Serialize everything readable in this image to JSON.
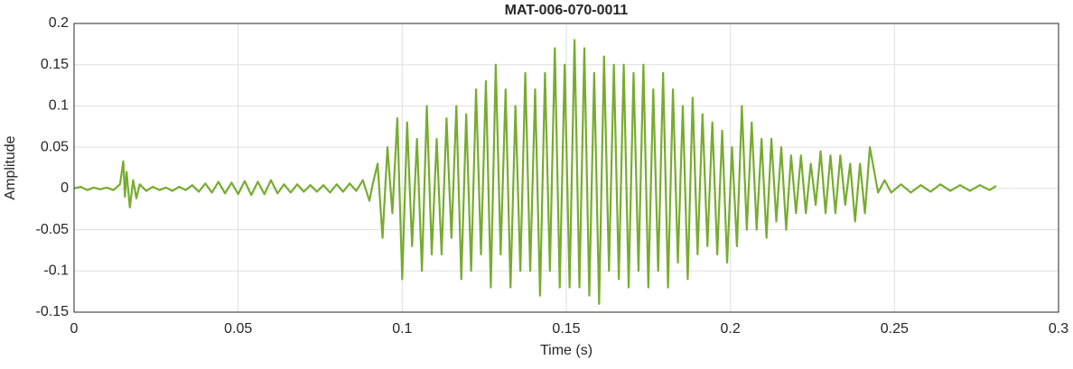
{
  "chart_data": {
    "type": "line",
    "title": "MAT-006-070-0011",
    "xlabel": "Time (s)",
    "ylabel": "Amplitude",
    "color": "#77ac30",
    "grid": true,
    "xlim": [
      0,
      0.3
    ],
    "xticks": [
      0,
      0.05,
      0.1,
      0.15,
      0.2,
      0.25,
      0.3
    ],
    "ylim": [
      -0.15,
      0.2
    ],
    "yticks": [
      -0.15,
      -0.1,
      -0.05,
      0,
      0.05,
      0.1,
      0.15,
      0.2
    ],
    "x": [
      0,
      0.002,
      0.004,
      0.006,
      0.008,
      0.01,
      0.012,
      0.014,
      0.015,
      0.0155,
      0.016,
      0.017,
      0.018,
      0.019,
      0.02,
      0.022,
      0.024,
      0.026,
      0.028,
      0.03,
      0.032,
      0.034,
      0.036,
      0.038,
      0.04,
      0.042,
      0.044,
      0.046,
      0.048,
      0.05,
      0.052,
      0.054,
      0.056,
      0.058,
      0.06,
      0.062,
      0.064,
      0.066,
      0.068,
      0.07,
      0.072,
      0.074,
      0.076,
      0.078,
      0.08,
      0.082,
      0.084,
      0.086,
      0.088,
      0.09,
      0.091,
      0.0925,
      0.094,
      0.0955,
      0.097,
      0.0985,
      0.1,
      0.1015,
      0.103,
      0.1045,
      0.106,
      0.1075,
      0.109,
      0.1105,
      0.112,
      0.1135,
      0.115,
      0.1165,
      0.118,
      0.1195,
      0.121,
      0.1225,
      0.124,
      0.1255,
      0.127,
      0.1285,
      0.13,
      0.1315,
      0.133,
      0.1345,
      0.136,
      0.1375,
      0.139,
      0.1405,
      0.142,
      0.1435,
      0.145,
      0.1465,
      0.148,
      0.1495,
      0.151,
      0.1525,
      0.154,
      0.1555,
      0.157,
      0.1585,
      0.16,
      0.1615,
      0.163,
      0.1645,
      0.166,
      0.1675,
      0.169,
      0.1705,
      0.172,
      0.1735,
      0.175,
      0.1765,
      0.178,
      0.1795,
      0.181,
      0.1825,
      0.184,
      0.1855,
      0.187,
      0.1885,
      0.19,
      0.1915,
      0.193,
      0.1945,
      0.196,
      0.1975,
      0.199,
      0.2005,
      0.202,
      0.2035,
      0.205,
      0.2065,
      0.208,
      0.2095,
      0.211,
      0.2125,
      0.214,
      0.2155,
      0.217,
      0.2185,
      0.22,
      0.2215,
      0.223,
      0.2245,
      0.226,
      0.2275,
      0.229,
      0.2305,
      0.232,
      0.2335,
      0.235,
      0.2365,
      0.238,
      0.2395,
      0.241,
      0.2425,
      0.245,
      0.247,
      0.249,
      0.252,
      0.255,
      0.258,
      0.261,
      0.264,
      0.267,
      0.27,
      0.273,
      0.276,
      0.279,
      0.281
    ],
    "values": [
      0,
      0.002,
      -0.002,
      0.001,
      -0.001,
      0.001,
      -0.002,
      0.005,
      0.033,
      -0.01,
      0.02,
      -0.023,
      0.01,
      -0.012,
      0.005,
      -0.003,
      0.002,
      -0.002,
      0.001,
      -0.003,
      0.002,
      -0.002,
      0.004,
      -0.004,
      0.006,
      -0.005,
      0.008,
      -0.006,
      0.007,
      -0.007,
      0.009,
      -0.008,
      0.008,
      -0.007,
      0.01,
      -0.006,
      0.005,
      -0.005,
      0.005,
      -0.004,
      0.004,
      -0.004,
      0.004,
      -0.005,
      0.005,
      -0.004,
      0.006,
      -0.003,
      0.01,
      -0.015,
      0.005,
      0.03,
      -0.06,
      0.05,
      -0.03,
      0.085,
      -0.11,
      0.08,
      -0.07,
      0.06,
      -0.1,
      0.1,
      -0.08,
      0.06,
      -0.08,
      0.085,
      -0.06,
      0.1,
      -0.11,
      0.09,
      -0.1,
      0.12,
      -0.08,
      0.13,
      -0.12,
      0.15,
      -0.08,
      0.12,
      -0.12,
      0.1,
      -0.1,
      0.14,
      -0.1,
      0.12,
      -0.13,
      0.14,
      -0.1,
      0.17,
      -0.12,
      0.15,
      -0.12,
      0.18,
      -0.12,
      0.17,
      -0.13,
      0.14,
      -0.14,
      0.16,
      -0.1,
      0.15,
      -0.11,
      0.15,
      -0.12,
      0.14,
      -0.1,
      0.15,
      -0.12,
      0.12,
      -0.1,
      0.14,
      -0.12,
      0.12,
      -0.09,
      0.1,
      -0.11,
      0.11,
      -0.08,
      0.09,
      -0.07,
      0.08,
      -0.08,
      0.07,
      -0.09,
      0.05,
      -0.07,
      0.1,
      -0.05,
      0.08,
      -0.05,
      0.06,
      -0.06,
      0.06,
      -0.04,
      0.05,
      -0.05,
      0.04,
      -0.03,
      0.04,
      -0.03,
      0.03,
      -0.02,
      0.045,
      -0.03,
      0.04,
      -0.03,
      0.04,
      -0.02,
      0.03,
      -0.04,
      0.03,
      -0.03,
      0.05,
      -0.005,
      0.01,
      -0.005,
      0.005,
      -0.005,
      0.004,
      -0.004,
      0.005,
      -0.003,
      0.004,
      -0.003,
      0.004,
      -0.002,
      0.003
    ]
  }
}
